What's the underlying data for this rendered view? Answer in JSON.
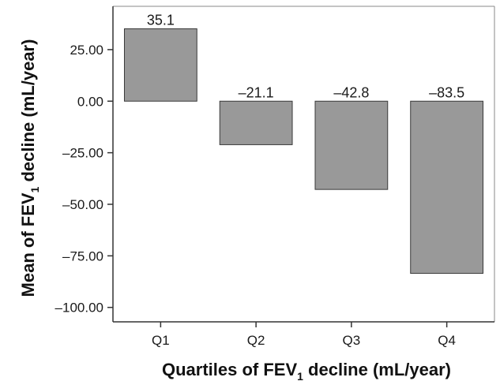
{
  "chart_data": {
    "type": "bar",
    "categories": [
      "Q1",
      "Q2",
      "Q3",
      "Q4"
    ],
    "values": [
      35.1,
      -21.1,
      -42.8,
      -83.5
    ],
    "data_labels": [
      "35.1",
      "–21.1",
      "–42.8",
      "–83.5"
    ],
    "ylim": [
      -107,
      46
    ],
    "yticks": [
      25,
      0,
      -25,
      -50,
      -75,
      -100
    ],
    "ytick_labels": [
      "25.00",
      "0.00",
      "–25.00",
      "–50.00",
      "–75.00",
      "–100.00"
    ],
    "xlabel": {
      "before": "Quartiles of FEV",
      "sub": "1",
      "after": " decline (mL/year)"
    },
    "ylabel": {
      "before": "Mean of FEV",
      "sub": "1",
      "after": " decline (mL/year)"
    },
    "grid": false,
    "legend": "none",
    "colors": {
      "bar_fill": "#999999",
      "bar_stroke": "#3a3a3a",
      "axis": "#333333",
      "frame": "#888888"
    }
  }
}
